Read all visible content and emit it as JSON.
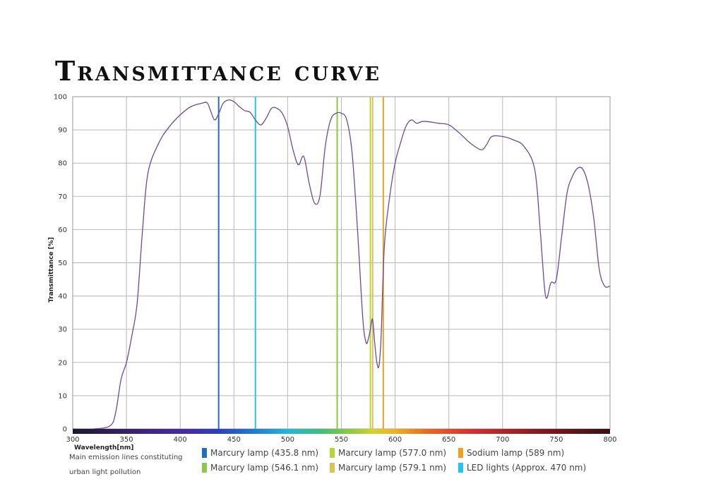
{
  "title": "Transmittance curve",
  "legend": {
    "note_line1": "Main emission lines constituting",
    "note_line2": "urban light pollution",
    "items": [
      {
        "label": "Marcury lamp (435.8 nm)",
        "color": "#1f6fc0",
        "wavelength": 435.8
      },
      {
        "label": "Marcury lamp (577.0 nm)",
        "color": "#b5d633",
        "wavelength": 577.0
      },
      {
        "label": "Sodium lamp (589 nm)",
        "color": "#f0a020",
        "wavelength": 589
      },
      {
        "label": "Marcury lamp (546.1 nm)",
        "color": "#8cc84b",
        "wavelength": 546.1
      },
      {
        "label": "Marcury lamp (579.1 nm)",
        "color": "#d8c25a",
        "wavelength": 579.1
      },
      {
        "label": "LED lights (Approx. 470 nm)",
        "color": "#25c3ee",
        "wavelength": 470
      }
    ]
  },
  "chart_data": {
    "type": "line",
    "xlabel": "Wavelength[nm]",
    "ylabel": "Transmittance [%]",
    "xlim": [
      300,
      800
    ],
    "ylim": [
      0,
      100
    ],
    "x_ticks": [
      300,
      350,
      400,
      450,
      500,
      550,
      600,
      650,
      700,
      750,
      800
    ],
    "y_ticks": [
      0,
      10,
      20,
      30,
      40,
      50,
      60,
      70,
      80,
      90,
      100
    ],
    "grid": true,
    "line_color": "#6a4c9c",
    "series": [
      {
        "x": [
          300,
          320,
          335,
          340,
          345,
          350,
          355,
          360,
          365,
          370,
          380,
          390,
          400,
          410,
          420,
          425,
          428,
          432,
          436,
          440,
          445,
          450,
          455,
          460,
          465,
          470,
          475,
          480,
          485,
          490,
          495,
          500,
          505,
          510,
          515,
          520,
          525,
          530,
          535,
          540,
          545,
          550,
          555,
          560,
          565,
          570,
          573,
          575,
          577,
          579,
          581,
          583,
          585,
          587,
          590,
          595,
          600,
          605,
          610,
          615,
          620,
          625,
          630,
          640,
          650,
          660,
          670,
          680,
          685,
          690,
          700,
          710,
          720,
          730,
          735,
          740,
          745,
          750,
          755,
          760,
          765,
          770,
          775,
          780,
          785,
          790,
          795,
          800
        ],
        "y": [
          0,
          0,
          1,
          5,
          15,
          20,
          28,
          38,
          60,
          77,
          86,
          91,
          94.5,
          97,
          98,
          98.2,
          96,
          93,
          95,
          98,
          99,
          98.5,
          97,
          95.8,
          95.3,
          93,
          91.5,
          93.5,
          96.5,
          96.5,
          95,
          91,
          84,
          79.5,
          82,
          74,
          68,
          70,
          85,
          93,
          95,
          95,
          93,
          83,
          60,
          33,
          26,
          27,
          30,
          33,
          26,
          20,
          19,
          28,
          55,
          70,
          80,
          86,
          91,
          93,
          92,
          92.5,
          92.5,
          92,
          91.5,
          89,
          86,
          84,
          85.5,
          88,
          88,
          87,
          85,
          78,
          60,
          40,
          44,
          45,
          58,
          71,
          76,
          78.5,
          78,
          73,
          63,
          48,
          43,
          43
        ]
      }
    ],
    "emission_lines": [
      435.8,
      470,
      546.1,
      577.0,
      579.1,
      589
    ]
  }
}
